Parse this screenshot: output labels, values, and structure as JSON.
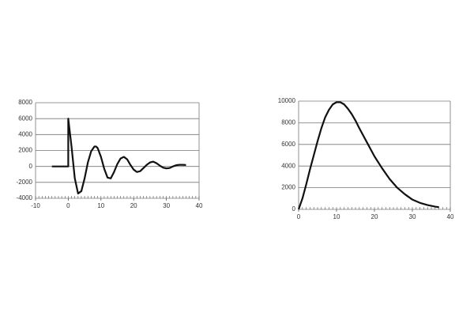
{
  "chart_data": [
    {
      "type": "line",
      "color": "#111111",
      "grid": true,
      "x": [
        -5,
        0,
        0,
        1,
        2,
        3,
        4,
        5,
        6,
        7,
        8,
        8.5,
        9,
        10,
        11,
        12,
        13,
        14,
        15,
        16,
        17,
        18,
        19,
        20,
        21,
        22,
        23,
        24,
        25,
        26,
        27,
        28,
        29,
        30,
        31,
        32,
        33,
        34,
        35,
        36
      ],
      "values": [
        0,
        0,
        6000,
        2500,
        -1500,
        -3400,
        -3100,
        -1500,
        500,
        1900,
        2500,
        2500,
        2300,
        1200,
        -300,
        -1400,
        -1500,
        -700,
        300,
        1000,
        1200,
        900,
        200,
        -400,
        -700,
        -600,
        -200,
        200,
        500,
        600,
        400,
        100,
        -150,
        -250,
        -200,
        0,
        150,
        200,
        200,
        180
      ],
      "xlim": [
        -10,
        40
      ],
      "xticks": [
        -10,
        0,
        10,
        20,
        30,
        40
      ],
      "ylim": [
        -4000,
        8000
      ],
      "yticks": [
        -4000,
        -2000,
        0,
        2000,
        4000,
        6000,
        8000
      ]
    },
    {
      "type": "line",
      "color": "#111111",
      "grid": true,
      "x": [
        0,
        1,
        2,
        3,
        4,
        5,
        6,
        7,
        8,
        9,
        10,
        11,
        12,
        13,
        14,
        15,
        16,
        18,
        20,
        22,
        24,
        26,
        28,
        30,
        32,
        34,
        36,
        37
      ],
      "values": [
        0,
        1000,
        2300,
        3700,
        5000,
        6300,
        7500,
        8500,
        9200,
        9700,
        9900,
        9900,
        9700,
        9300,
        8800,
        8200,
        7500,
        6200,
        4900,
        3800,
        2800,
        2000,
        1400,
        900,
        600,
        400,
        250,
        200
      ],
      "xlim": [
        0,
        40
      ],
      "xticks": [
        0,
        10,
        20,
        30,
        40
      ],
      "ylim": [
        0,
        10000
      ],
      "yticks": [
        0,
        2000,
        4000,
        6000,
        8000,
        10000
      ]
    }
  ]
}
